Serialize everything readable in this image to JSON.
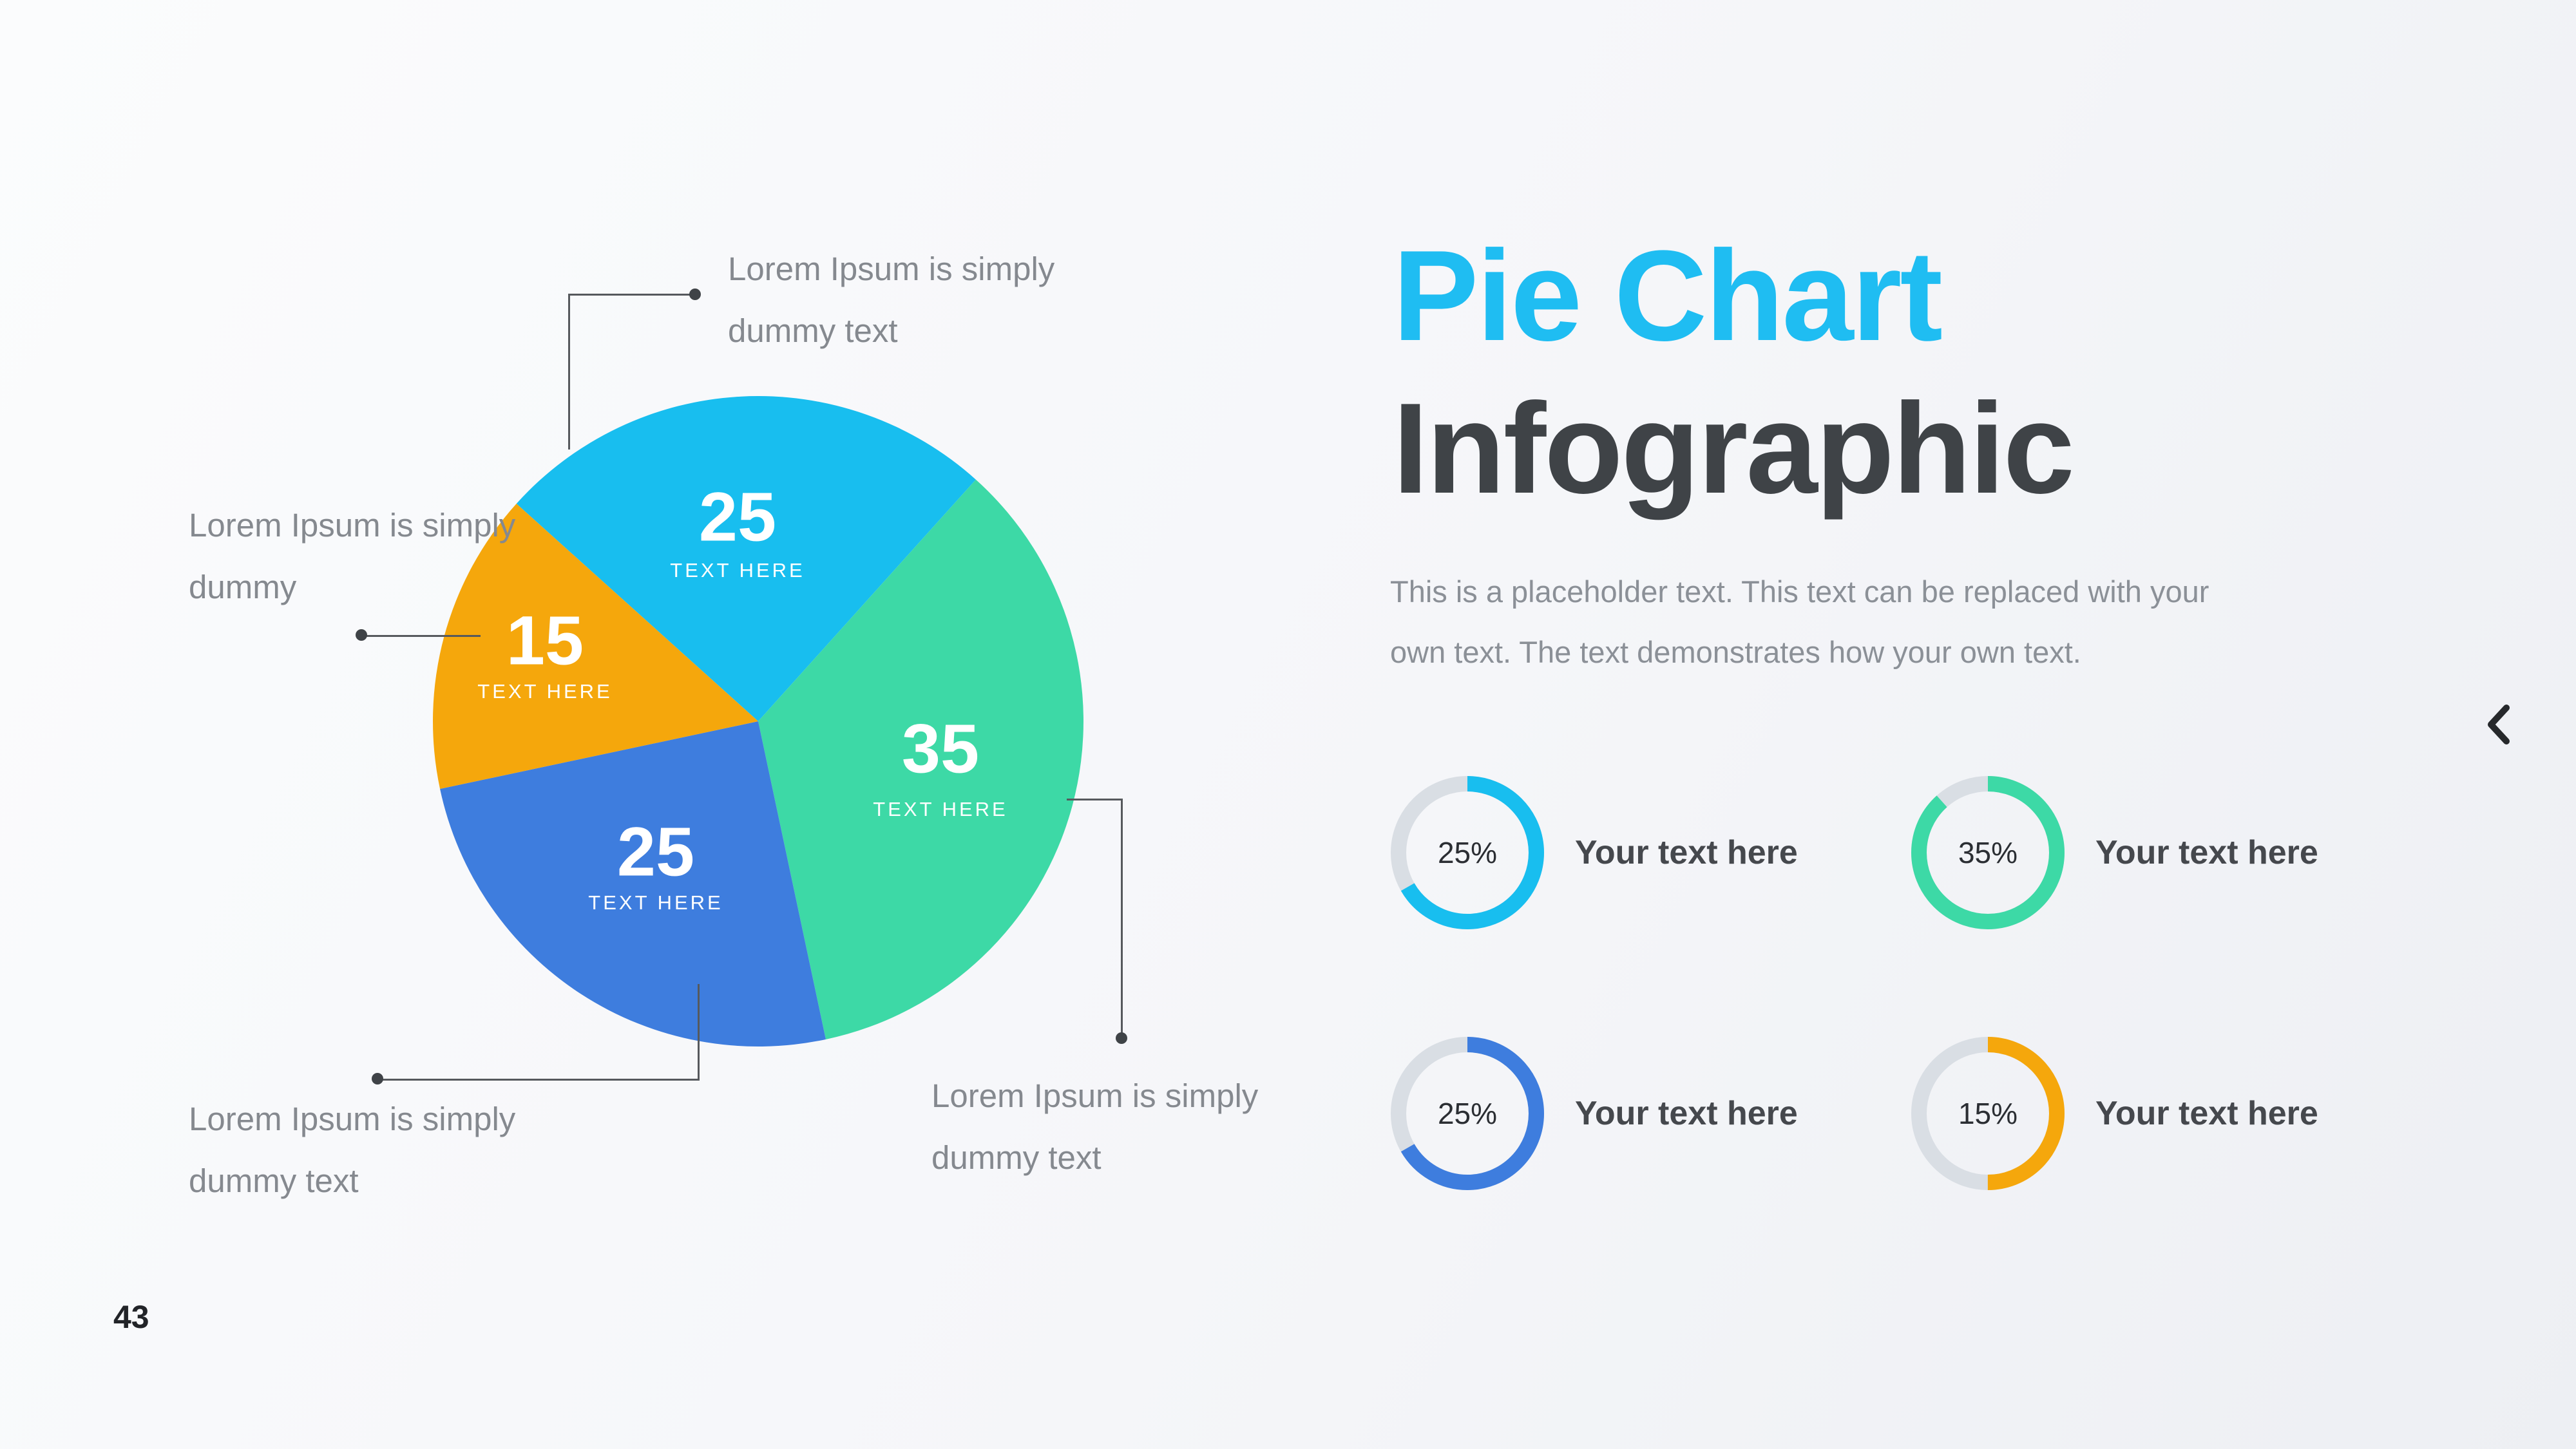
{
  "slide": {
    "title_line1": "Pie Chart",
    "title_line2": "Infographic",
    "description_line1": "This is a placeholder text. This text can be replaced with your",
    "description_line2": "own text. The text demonstrates how your own text.",
    "page_number": "43",
    "accent_color": "#1FBDF2",
    "title_dark_color": "#3F4347"
  },
  "chart_data": [
    {
      "type": "pie",
      "title": "Pie Chart Infographic",
      "categories": [
        "TEXT HERE",
        "TEXT HERE",
        "TEXT HERE",
        "TEXT HERE"
      ],
      "values": [
        25,
        35,
        25,
        15
      ],
      "colors": [
        "#18BEEF",
        "#3DD9A6",
        "#3E7DDE",
        "#F5A70C"
      ],
      "slice_names": [
        "cyan",
        "green",
        "blue",
        "orange"
      ],
      "start_angle_deg": -48,
      "callouts": {
        "top": {
          "line1": "Lorem Ipsum is simply",
          "line2": "dummy text"
        },
        "left": {
          "line1": "Lorem Ipsum is simply",
          "line2": "dummy"
        },
        "bottom_left": {
          "line1": "Lorem Ipsum is simply",
          "line2": "dummy text"
        },
        "bottom_right": {
          "line1": "Lorem Ipsum is simply",
          "line2": "dummy text"
        }
      }
    },
    {
      "type": "donut-gauges",
      "track_color": "#D9DEE4",
      "items": [
        {
          "percent_label": "25%",
          "value": 25,
          "label": "Your text here",
          "color": "#18BEEF",
          "sweep_deg": 240
        },
        {
          "percent_label": "35%",
          "value": 35,
          "label": "Your text here",
          "color": "#3DD9A6",
          "sweep_deg": 318
        },
        {
          "percent_label": "25%",
          "value": 25,
          "label": "Your text here",
          "color": "#3E7DDE",
          "sweep_deg": 240
        },
        {
          "percent_label": "15%",
          "value": 15,
          "label": "Your text here",
          "color": "#F5A70C",
          "sweep_deg": 180
        }
      ]
    }
  ],
  "nav": {
    "back_icon": "chevron-left"
  }
}
